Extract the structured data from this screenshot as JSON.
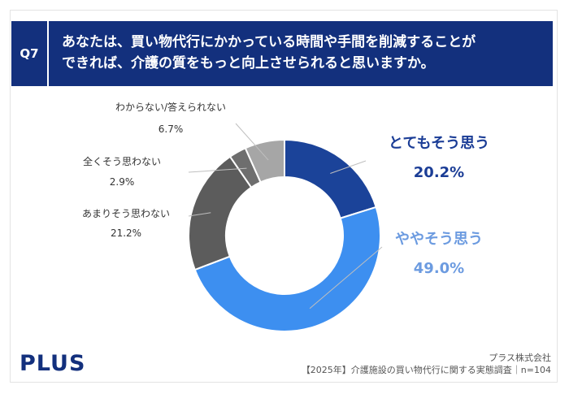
{
  "question": {
    "number": "Q7",
    "lines": [
      "あなたは、買い物代行にかかっている時間や手間を削減することが",
      "できれば、介護の質をもっと向上させられると思いますか。"
    ]
  },
  "brand": {
    "logo": "PLUS"
  },
  "footer": {
    "company": "プラス株式会社",
    "source": "【2025年】介護施設の買い物代行に関する実態調査｜n=104"
  },
  "colors": {
    "navy": "#13307d",
    "dark_blue": "#1b4399",
    "light_blue": "#3d8ff0",
    "dark_gray": "#5c5c5c",
    "mid_gray": "#6e6e6e",
    "light_gray": "#a6a6a6",
    "big_label_dark": "#1b3d96",
    "big_label_light": "#6c9be0"
  },
  "chart_data": {
    "type": "pie",
    "donut": true,
    "title": "",
    "categories": [
      "とてもそう思う",
      "ややそう思う",
      "あまりそう思わない",
      "全くそう思わない",
      "わからない/答えられない"
    ],
    "values": [
      20.2,
      49.0,
      21.2,
      2.9,
      6.7
    ],
    "value_labels": [
      "20.2%",
      "49.0%",
      "21.2%",
      "2.9%",
      "6.7%"
    ]
  }
}
